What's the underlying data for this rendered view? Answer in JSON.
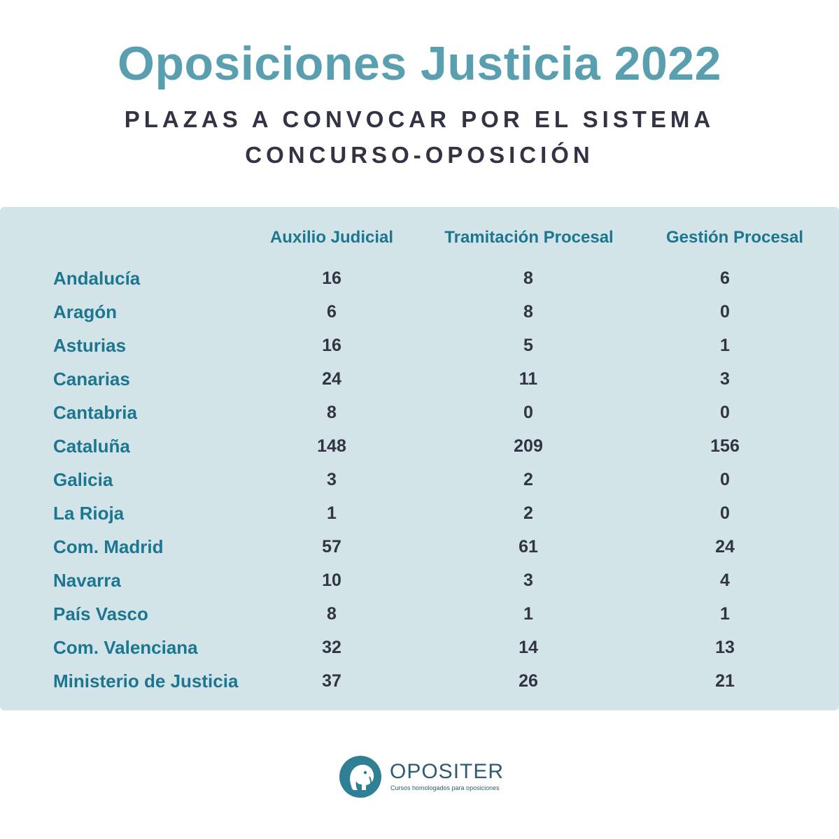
{
  "title": "Oposiciones Justicia 2022",
  "subtitle_line1": "PLAZAS A CONVOCAR POR EL SISTEMA",
  "subtitle_line2": "CONCURSO-OPOSICIÓN",
  "colors": {
    "title": "#5a9fb0",
    "subtitle": "#323444",
    "panel": "#d3e4e9",
    "accent": "#1d7690",
    "value": "#323444",
    "brand": "#2e5c73"
  },
  "chart_data": {
    "type": "table",
    "columns": [
      "Auxilio Judicial",
      "Tramitación Procesal",
      "Gestión Procesal"
    ],
    "rows": [
      {
        "label": "Andalucía",
        "values": [
          16,
          8,
          6
        ]
      },
      {
        "label": "Aragón",
        "values": [
          6,
          8,
          0
        ]
      },
      {
        "label": "Asturias",
        "values": [
          16,
          5,
          1
        ]
      },
      {
        "label": "Canarias",
        "values": [
          24,
          11,
          3
        ]
      },
      {
        "label": "Cantabria",
        "values": [
          8,
          0,
          0
        ]
      },
      {
        "label": "Cataluña",
        "values": [
          148,
          209,
          156
        ]
      },
      {
        "label": "Galicia",
        "values": [
          3,
          2,
          0
        ]
      },
      {
        "label": "La Rioja",
        "values": [
          1,
          2,
          0
        ]
      },
      {
        "label": "Com. Madrid",
        "values": [
          57,
          61,
          24
        ]
      },
      {
        "label": "Navarra",
        "values": [
          10,
          3,
          4
        ]
      },
      {
        "label": "País Vasco",
        "values": [
          8,
          1,
          1
        ]
      },
      {
        "label": "Com. Valenciana",
        "values": [
          32,
          14,
          13
        ]
      },
      {
        "label": "Ministerio de Justicia",
        "values": [
          37,
          26,
          21
        ]
      }
    ]
  },
  "logo": {
    "name": "OPOSITER",
    "tagline": "Cursos homologados para oposiciones",
    "icon": "elephant-logo-icon"
  }
}
